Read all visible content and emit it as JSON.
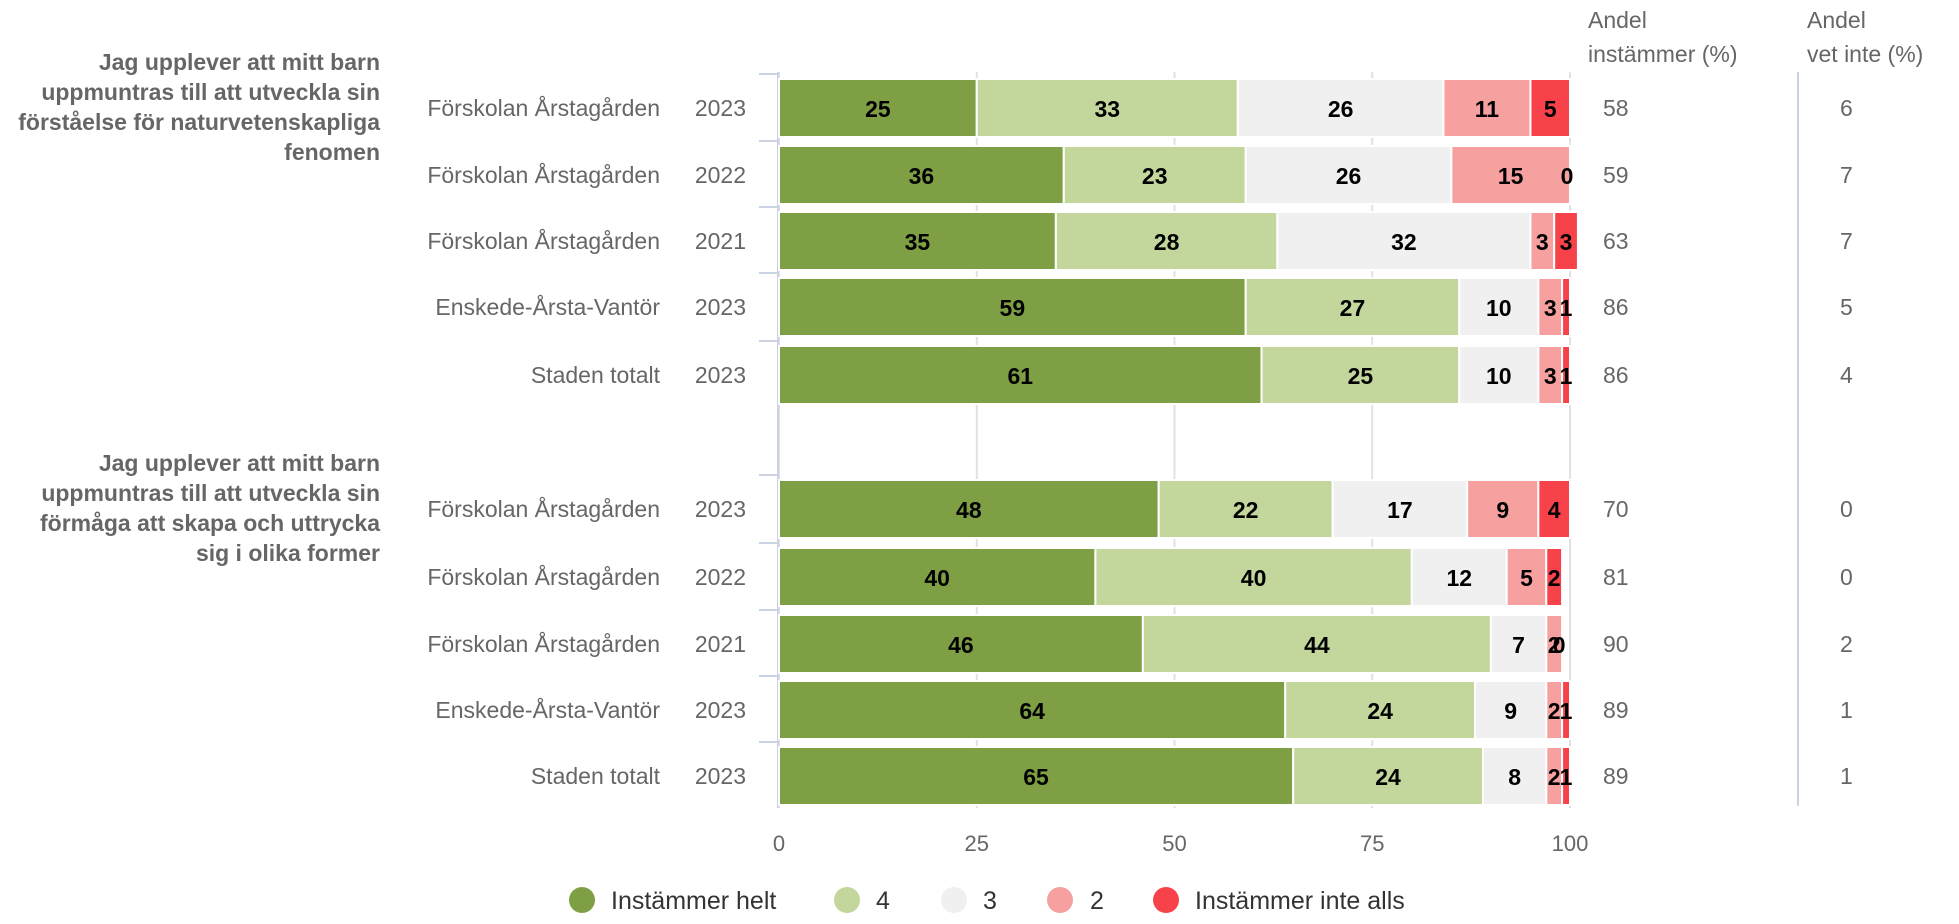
{
  "chart_data": {
    "type": "bar",
    "orientation": "horizontal",
    "stacked": true,
    "xlim": [
      0,
      100
    ],
    "xticks": [
      "0",
      "25",
      "50",
      "75",
      "100"
    ],
    "legend_position": "bottom",
    "series": [
      {
        "name": "Instämmer helt",
        "color": "#7f9f44"
      },
      {
        "name": "4",
        "color": "#c3d79d"
      },
      {
        "name": "3",
        "color": "#f0f0f0"
      },
      {
        "name": "2",
        "color": "#f6a0a0"
      },
      {
        "name": "Instämmer inte alls",
        "color": "#f7424a"
      }
    ],
    "columns": {
      "agree_header_1": "Andel",
      "agree_header_2": "instämmer (%)",
      "dontknow_header_1": "Andel",
      "dontknow_header_2": "vet inte (%)"
    },
    "groups": [
      {
        "title_lines": [
          "Jag upplever att mitt barn",
          "uppmuntras till att utveckla sin",
          "förståelse för naturvetenskapliga",
          "fenomen"
        ],
        "rows": [
          {
            "unit": "Förskolan Årstagården",
            "year": "2023",
            "values": [
              25,
              33,
              26,
              11,
              5
            ],
            "agree": "58",
            "dontknow": "6"
          },
          {
            "unit": "Förskolan Årstagården",
            "year": "2022",
            "values": [
              36,
              23,
              26,
              15,
              0
            ],
            "agree": "59",
            "dontknow": "7"
          },
          {
            "unit": "Förskolan Årstagården",
            "year": "2021",
            "values": [
              35,
              28,
              32,
              3,
              3
            ],
            "agree": "63",
            "dontknow": "7"
          },
          {
            "unit": "Enskede-Årsta-Vantör",
            "year": "2023",
            "values": [
              59,
              27,
              10,
              3,
              1
            ],
            "agree": "86",
            "dontknow": "5"
          },
          {
            "unit": "Staden totalt",
            "year": "2023",
            "values": [
              61,
              25,
              10,
              3,
              1
            ],
            "agree": "86",
            "dontknow": "4"
          }
        ]
      },
      {
        "title_lines": [
          "Jag upplever att mitt barn",
          "uppmuntras till att utveckla sin",
          "förmåga att skapa och uttrycka",
          "sig i olika former"
        ],
        "rows": [
          {
            "unit": "Förskolan Årstagården",
            "year": "2023",
            "values": [
              48,
              22,
              17,
              9,
              4
            ],
            "agree": "70",
            "dontknow": "0"
          },
          {
            "unit": "Förskolan Årstagården",
            "year": "2022",
            "values": [
              40,
              40,
              12,
              5,
              2
            ],
            "agree": "81",
            "dontknow": "0"
          },
          {
            "unit": "Förskolan Årstagården",
            "year": "2021",
            "values": [
              46,
              44,
              7,
              2,
              0
            ],
            "agree": "90",
            "dontknow": "2"
          },
          {
            "unit": "Enskede-Årsta-Vantör",
            "year": "2023",
            "values": [
              64,
              24,
              9,
              2,
              1
            ],
            "agree": "89",
            "dontknow": "1"
          },
          {
            "unit": "Staden totalt",
            "year": "2023",
            "values": [
              65,
              24,
              8,
              2,
              1
            ],
            "agree": "89",
            "dontknow": "1"
          }
        ]
      }
    ]
  }
}
